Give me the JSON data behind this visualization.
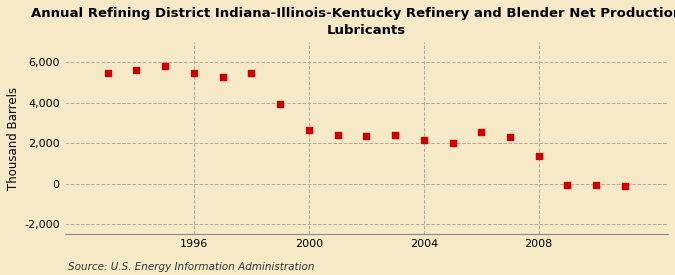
{
  "title_line1": "Annual Refining District Indiana-Illinois-Kentucky Refinery and Blender Net Production of",
  "title_line2": "Lubricants",
  "ylabel": "Thousand Barrels",
  "source": "Source: U.S. Energy Information Administration",
  "background_color": "#f5e9c8",
  "plot_bg_color": "#f5e9c8",
  "marker_color": "#cc0000",
  "grid_color": "#b0a898",
  "years": [
    1993,
    1994,
    1995,
    1996,
    1997,
    1998,
    1999,
    2000,
    2001,
    2002,
    2003,
    2004,
    2005,
    2006,
    2007,
    2008,
    2009,
    2010,
    2011
  ],
  "values": [
    5500,
    5650,
    5800,
    5500,
    5300,
    5500,
    3950,
    2650,
    2400,
    2350,
    2400,
    2150,
    2000,
    2550,
    2300,
    1350,
    -50,
    -75,
    -100
  ],
  "ylim": [
    -2500,
    7000
  ],
  "yticks": [
    -2000,
    0,
    2000,
    4000,
    6000
  ],
  "xticks": [
    1996,
    2000,
    2004,
    2008
  ],
  "xlim": [
    1991.5,
    2012.5
  ],
  "title_fontsize": 9.5,
  "tick_fontsize": 8,
  "ylabel_fontsize": 8.5,
  "source_fontsize": 7.5
}
